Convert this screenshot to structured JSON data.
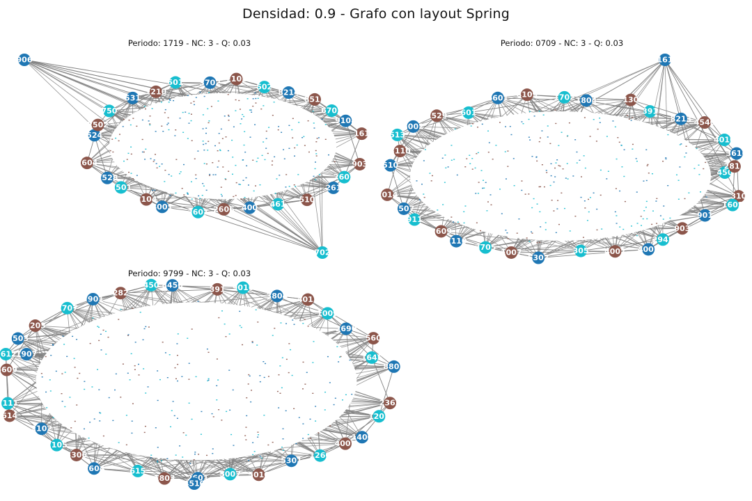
{
  "figure": {
    "title": "Densidad: 0.9 - Grafo con layout Spring"
  },
  "colors": {
    "community_a": "#1f77b4",
    "community_b": "#8c564b",
    "community_c": "#17becf",
    "edge": "#808080",
    "label": "#ffffff"
  },
  "panels": [
    {
      "title": "Periodo: 1719 - NC: 3 - Q: 0.03",
      "visible_node_labels": [
        "906",
        "903",
        "2602",
        "261",
        "510",
        "461",
        "400",
        "2606",
        "2601",
        "4001",
        "2104",
        "7501",
        "2528",
        "2604",
        "702",
        "524",
        "7502",
        "750",
        "531",
        "1210",
        "501",
        "3702",
        "7101",
        "502",
        "8214",
        "8513",
        "6702",
        "9108",
        "161"
      ]
    },
    {
      "title": "Periodo: 0709 - NC: 3 - Q: 0.03",
      "visible_node_labels": [
        "161",
        "310",
        "1602",
        "901",
        "903",
        "2942",
        "4001",
        "4007",
        "305",
        "5307",
        "1007",
        "3705",
        "1110",
        "2609",
        "911",
        "1507",
        "2014",
        "450",
        "510",
        "3110",
        "513",
        "5002",
        "2529",
        "601",
        "6601",
        "8109",
        "1702",
        "1804",
        "130",
        "391",
        "8213",
        "4540",
        "4010",
        "3616",
        "2811"
      ]
    },
    {
      "title": "Periodo: 9799 - NC: 3 - Q: 0.03",
      "visible_node_labels": [
        "1907",
        "2363",
        "1201",
        "1400",
        "4007",
        "1260",
        "5301",
        "5010",
        "5007",
        "2601",
        "1803",
        "615",
        "2604",
        "5306",
        "2105",
        "2102",
        "614",
        "7111",
        "4510",
        "6609",
        "5612",
        "7503",
        "1203",
        "2707",
        "7901",
        "282",
        "450",
        "8450",
        "391",
        "9016",
        "3804",
        "4013",
        "1009",
        "2690",
        "560",
        "1645",
        "8801"
      ]
    }
  ]
}
